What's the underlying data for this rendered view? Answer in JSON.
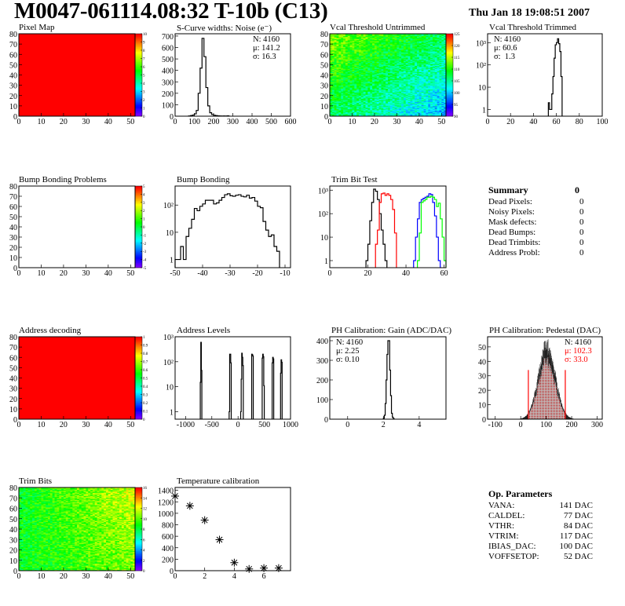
{
  "header": {
    "title": "M0047-061114.08:32 T-10b (C13)",
    "date": "Thu Jan 18 19:08:51 2007"
  },
  "colors": {
    "frame": "#000000",
    "red": "#ff0000",
    "blue": "#0000ff",
    "green": "#00ff00"
  },
  "chart_data": [
    {
      "id": "pixel-map",
      "type": "heatmap",
      "title": "Pixel Map",
      "xlim": [
        0,
        52
      ],
      "ylim": [
        0,
        80
      ],
      "xticks": [
        0,
        10,
        20,
        30,
        40,
        50
      ],
      "yticks": [
        0,
        10,
        20,
        30,
        40,
        50,
        60,
        70,
        80
      ],
      "zlim": [
        0,
        10
      ],
      "zticks": [
        "0",
        "1",
        "2",
        "3",
        "4",
        "5",
        "6",
        "7",
        "8",
        "9",
        "10"
      ],
      "fill": "uniform",
      "value": 10
    },
    {
      "id": "scurve-noise",
      "type": "bar",
      "title": "S-Curve widths: Noise (e⁻)",
      "xlim": [
        0,
        600
      ],
      "ylim": [
        0,
        720
      ],
      "xticks": [
        0,
        100,
        200,
        300,
        400,
        500,
        600
      ],
      "yticks": [
        0,
        100,
        200,
        300,
        400,
        500,
        600,
        700
      ],
      "stats": {
        "n": "N: 4160",
        "mean": "μ: 141.2",
        "sigma": "σ: 16.3"
      },
      "series": [
        {
          "color": "#000000",
          "binwidth": 10,
          "start": 70,
          "values": [
            2,
            5,
            10,
            20,
            50,
            200,
            420,
            680,
            520,
            250,
            90,
            30,
            15,
            8,
            5,
            3,
            2,
            1,
            2,
            1,
            3
          ]
        }
      ]
    },
    {
      "id": "vcal-untrimmed",
      "type": "heatmap",
      "title": "Vcal Threshold Untrimmed",
      "xlim": [
        0,
        52
      ],
      "ylim": [
        0,
        80
      ],
      "xticks": [
        0,
        10,
        20,
        30,
        40,
        50
      ],
      "yticks": [
        0,
        10,
        20,
        30,
        40,
        50,
        60,
        70,
        80
      ],
      "zlim": [
        86,
        126
      ],
      "zticks": [
        "90",
        "95",
        "100",
        "105",
        "110",
        "115",
        "120",
        "125"
      ],
      "fill": "gradient",
      "corners": {
        "top_left": 113,
        "bottom_right": 97
      }
    },
    {
      "id": "vcal-trimmed",
      "type": "bar",
      "title": "Vcal Threshold Trimmed",
      "log": true,
      "xlim": [
        0,
        100
      ],
      "ylim": [
        0.5,
        2500
      ],
      "xticks": [
        0,
        20,
        40,
        60,
        80,
        100
      ],
      "yticks": [
        1,
        10,
        100,
        1000
      ],
      "stats": {
        "n": "N: 4160",
        "mean": "μ: 60.6",
        "sigma": "σ:  1.3"
      },
      "series": [
        {
          "color": "#000000",
          "binwidth": 1,
          "start": 53,
          "values": [
            2,
            1,
            1,
            5,
            30,
            200,
            800,
            1000,
            1500,
            900,
            400,
            30
          ]
        }
      ]
    },
    {
      "id": "bump-bonding-problems",
      "type": "heatmap",
      "title": "Bump Bonding Problems",
      "xlim": [
        0,
        52
      ],
      "ylim": [
        0,
        80
      ],
      "xticks": [
        0,
        10,
        20,
        30,
        40,
        50
      ],
      "yticks": [
        0,
        10,
        20,
        30,
        40,
        50,
        60,
        70,
        80
      ],
      "zlim": [
        -5,
        5
      ],
      "zticks": [
        "-5",
        "-4",
        "-3",
        "-2",
        "-1",
        "0",
        "1",
        "2",
        "3",
        "4",
        "5"
      ],
      "fill": "empty"
    },
    {
      "id": "bump-bonding",
      "type": "bar",
      "title": "Bump Bonding",
      "log": true,
      "xlim": [
        -50,
        -8
      ],
      "ylim": [
        0.5,
        500
      ],
      "xticks": [
        -50,
        -40,
        -30,
        -20,
        -10
      ],
      "yticks": [
        1,
        10,
        100
      ],
      "series": [
        {
          "color": "#000000",
          "binwidth": 1,
          "start": -50,
          "values": [
            1,
            1,
            3,
            1,
            7,
            14,
            30,
            75,
            62,
            90,
            110,
            150,
            150,
            150,
            110,
            120,
            150,
            190,
            240,
            260,
            220,
            210,
            230,
            240,
            210,
            200,
            230,
            180,
            190,
            140,
            90,
            80,
            25,
            12,
            7,
            8,
            3,
            2
          ]
        }
      ]
    },
    {
      "id": "trim-bit-test",
      "type": "bar",
      "title": "Trim Bit Test",
      "log": true,
      "xlim": [
        0,
        61
      ],
      "ylim": [
        0.5,
        1500
      ],
      "xticks": [
        0,
        20,
        40,
        60
      ],
      "yticks": [
        1,
        10,
        100,
        1000
      ],
      "series": [
        {
          "color": "#000000",
          "binwidth": 1,
          "start": 19,
          "values": [
            1,
            5,
            50,
            300,
            1100,
            900,
            400,
            100,
            20,
            5,
            1
          ]
        },
        {
          "color": "#ff0000",
          "binwidth": 1,
          "start": 24,
          "values": [
            5,
            20,
            300,
            700,
            750,
            600,
            700,
            600,
            400,
            150,
            15
          ]
        },
        {
          "color": "#0000ff",
          "binwidth": 1,
          "start": 44,
          "values": [
            1,
            10,
            60,
            300,
            400,
            450,
            500,
            550,
            700,
            650,
            300,
            80,
            10,
            1
          ]
        },
        {
          "color": "#00ff00",
          "binwidth": 1,
          "start": 46,
          "values": [
            1,
            15,
            300,
            350,
            400,
            500,
            500,
            550,
            500,
            400,
            200,
            280,
            60,
            10,
            1
          ]
        }
      ]
    },
    {
      "id": "address-decoding",
      "type": "heatmap",
      "title": "Address decoding",
      "xlim": [
        0,
        52
      ],
      "ylim": [
        0,
        80
      ],
      "xticks": [
        0,
        10,
        20,
        30,
        40,
        50
      ],
      "yticks": [
        0,
        10,
        20,
        30,
        40,
        50,
        60,
        70,
        80
      ],
      "zlim": [
        0,
        1
      ],
      "zticks": [
        "0",
        "0.1",
        "0.2",
        "0.3",
        "0.4",
        "0.5",
        "0.6",
        "0.7",
        "0.8",
        "0.9",
        "1"
      ],
      "fill": "uniform",
      "value": 1
    },
    {
      "id": "address-levels",
      "type": "bar",
      "title": "Address Levels",
      "log": true,
      "xlim": [
        -1200,
        1000
      ],
      "ylim": [
        0.5,
        1000
      ],
      "xticks": [
        -1000,
        -500,
        0,
        500,
        1000
      ],
      "yticks": [
        1,
        10,
        100,
        1000
      ],
      "series": [
        {
          "color": "#000000",
          "binwidth": 10,
          "peaks": [
            {
              "start": -720,
              "values": [
                15,
                600,
                45
              ]
            },
            {
              "start": -170,
              "values": [
                1,
                200,
                200,
                90
              ]
            },
            {
              "start": 50,
              "values": [
                1,
                20,
                220,
                150,
                70
              ]
            },
            {
              "start": 260,
              "values": [
                200,
                190,
                170
              ]
            },
            {
              "start": 460,
              "values": [
                140,
                200,
                160,
                11
              ]
            },
            {
              "start": 650,
              "values": [
                90,
                150,
                130
              ]
            },
            {
              "start": 810,
              "values": [
                35,
                120,
                95
              ]
            }
          ]
        }
      ]
    },
    {
      "id": "ph-gain",
      "type": "bar",
      "title": "PH Calibration: Gain (ADC/DAC)",
      "xlim": [
        -1,
        5.5
      ],
      "ylim": [
        0,
        420
      ],
      "xticks": [
        0,
        2,
        4
      ],
      "yticks": [
        0,
        100,
        200,
        300,
        400
      ],
      "stats": {
        "n": "N: 4160",
        "mean": "μ: 2.25",
        "sigma": "σ: 0.10"
      },
      "series": [
        {
          "color": "#000000",
          "binwidth": 0.05,
          "start": 2.0,
          "values": [
            5,
            20,
            80,
            200,
            330,
            400,
            400,
            250,
            120,
            30,
            10,
            3
          ]
        }
      ]
    },
    {
      "id": "ph-pedestal",
      "type": "gaussian-bar",
      "title": "PH Calibration: Pedestal (DAC)",
      "xlim": [
        -130,
        320
      ],
      "ylim": [
        0,
        57
      ],
      "xticks": [
        -100,
        0,
        100,
        200,
        300
      ],
      "yticks": [
        0,
        10,
        20,
        30,
        40,
        50
      ],
      "stats": {
        "n": "N: 4160",
        "mean": "μ: 102.3",
        "sigma": "σ: 33.0"
      },
      "n": 4160,
      "mean": 102.3,
      "sigma": 33.0,
      "cut": [
        30,
        175
      ]
    },
    {
      "id": "trim-bits",
      "type": "heatmap",
      "title": "Trim Bits",
      "xlim": [
        0,
        52
      ],
      "ylim": [
        0,
        80
      ],
      "xticks": [
        0,
        10,
        20,
        30,
        40,
        50
      ],
      "yticks": [
        0,
        10,
        20,
        30,
        40,
        50,
        60,
        70,
        80
      ],
      "zlim": [
        0,
        16
      ],
      "zticks": [
        "0",
        "2",
        "4",
        "6",
        "8",
        "10",
        "12",
        "14",
        "16"
      ],
      "fill": "gradient",
      "corners": {
        "left": 8.5,
        "right": 12
      }
    },
    {
      "id": "temperature-calibration",
      "type": "scatter",
      "title": "Temperature calibration",
      "xlim": [
        0,
        7.8
      ],
      "ylim": [
        0,
        1450
      ],
      "xticks": [
        0,
        2,
        4,
        6
      ],
      "yticks": [
        0,
        200,
        400,
        600,
        800,
        1000,
        1200,
        1400
      ],
      "x": [
        0,
        1,
        2,
        3,
        4,
        5,
        6,
        7
      ],
      "y": [
        1300,
        1130,
        880,
        540,
        140,
        30,
        45,
        45
      ]
    }
  ],
  "summary": {
    "title": "Summary",
    "total": "0",
    "rows": [
      {
        "label": "Dead Pixels:",
        "value": "0"
      },
      {
        "label": "Noisy Pixels:",
        "value": "0"
      },
      {
        "label": "Mask defects:",
        "value": "0"
      },
      {
        "label": "Dead Bumps:",
        "value": "0"
      },
      {
        "label": "Dead Trimbits:",
        "value": "0"
      },
      {
        "label": "Address Probl:",
        "value": "0"
      }
    ]
  },
  "op_parameters": {
    "title": "Op. Parameters",
    "rows": [
      {
        "label": "VANA:",
        "value": "141 DAC"
      },
      {
        "label": "CALDEL:",
        "value": "77 DAC"
      },
      {
        "label": "VTHR:",
        "value": "84 DAC"
      },
      {
        "label": "VTRIM:",
        "value": "117 DAC"
      },
      {
        "label": "IBIAS_DAC:",
        "value": "100 DAC"
      },
      {
        "label": "VOFFSETOP:",
        "value": "52 DAC"
      }
    ]
  }
}
